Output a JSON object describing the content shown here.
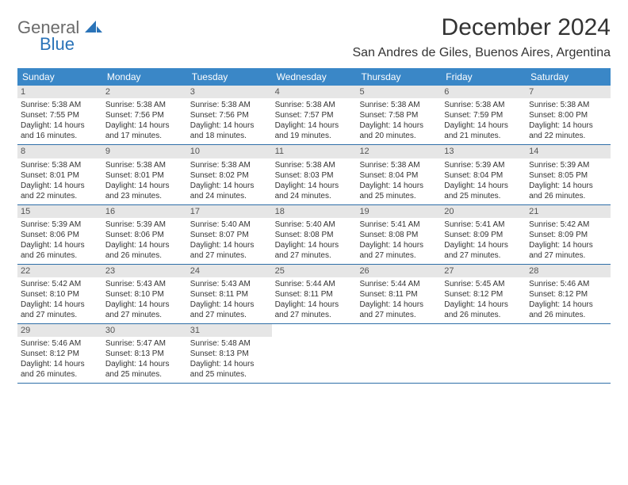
{
  "brand": {
    "general": "General",
    "blue": "Blue"
  },
  "header": {
    "month_title": "December 2024",
    "location": "San Andres de Giles, Buenos Aires, Argentina"
  },
  "styling": {
    "header_bg": "#3a87c7",
    "header_text": "#ffffff",
    "row_divider": "#2f6fa8",
    "daynum_bg": "#e6e6e6",
    "daynum_text": "#555555",
    "body_text": "#333333",
    "logo_gray": "#6b6b6b",
    "logo_blue": "#2a73b8",
    "page_bg": "#ffffff",
    "month_title_fontsize": 30,
    "location_fontsize": 16,
    "weekday_fontsize": 12,
    "cell_fontsize": 10,
    "columns": 7
  },
  "weekdays": [
    "Sunday",
    "Monday",
    "Tuesday",
    "Wednesday",
    "Thursday",
    "Friday",
    "Saturday"
  ],
  "days": [
    {
      "n": "1",
      "sunrise": "Sunrise: 5:38 AM",
      "sunset": "Sunset: 7:55 PM",
      "daylight": "Daylight: 14 hours and 16 minutes."
    },
    {
      "n": "2",
      "sunrise": "Sunrise: 5:38 AM",
      "sunset": "Sunset: 7:56 PM",
      "daylight": "Daylight: 14 hours and 17 minutes."
    },
    {
      "n": "3",
      "sunrise": "Sunrise: 5:38 AM",
      "sunset": "Sunset: 7:56 PM",
      "daylight": "Daylight: 14 hours and 18 minutes."
    },
    {
      "n": "4",
      "sunrise": "Sunrise: 5:38 AM",
      "sunset": "Sunset: 7:57 PM",
      "daylight": "Daylight: 14 hours and 19 minutes."
    },
    {
      "n": "5",
      "sunrise": "Sunrise: 5:38 AM",
      "sunset": "Sunset: 7:58 PM",
      "daylight": "Daylight: 14 hours and 20 minutes."
    },
    {
      "n": "6",
      "sunrise": "Sunrise: 5:38 AM",
      "sunset": "Sunset: 7:59 PM",
      "daylight": "Daylight: 14 hours and 21 minutes."
    },
    {
      "n": "7",
      "sunrise": "Sunrise: 5:38 AM",
      "sunset": "Sunset: 8:00 PM",
      "daylight": "Daylight: 14 hours and 22 minutes."
    },
    {
      "n": "8",
      "sunrise": "Sunrise: 5:38 AM",
      "sunset": "Sunset: 8:01 PM",
      "daylight": "Daylight: 14 hours and 22 minutes."
    },
    {
      "n": "9",
      "sunrise": "Sunrise: 5:38 AM",
      "sunset": "Sunset: 8:01 PM",
      "daylight": "Daylight: 14 hours and 23 minutes."
    },
    {
      "n": "10",
      "sunrise": "Sunrise: 5:38 AM",
      "sunset": "Sunset: 8:02 PM",
      "daylight": "Daylight: 14 hours and 24 minutes."
    },
    {
      "n": "11",
      "sunrise": "Sunrise: 5:38 AM",
      "sunset": "Sunset: 8:03 PM",
      "daylight": "Daylight: 14 hours and 24 minutes."
    },
    {
      "n": "12",
      "sunrise": "Sunrise: 5:38 AM",
      "sunset": "Sunset: 8:04 PM",
      "daylight": "Daylight: 14 hours and 25 minutes."
    },
    {
      "n": "13",
      "sunrise": "Sunrise: 5:39 AM",
      "sunset": "Sunset: 8:04 PM",
      "daylight": "Daylight: 14 hours and 25 minutes."
    },
    {
      "n": "14",
      "sunrise": "Sunrise: 5:39 AM",
      "sunset": "Sunset: 8:05 PM",
      "daylight": "Daylight: 14 hours and 26 minutes."
    },
    {
      "n": "15",
      "sunrise": "Sunrise: 5:39 AM",
      "sunset": "Sunset: 8:06 PM",
      "daylight": "Daylight: 14 hours and 26 minutes."
    },
    {
      "n": "16",
      "sunrise": "Sunrise: 5:39 AM",
      "sunset": "Sunset: 8:06 PM",
      "daylight": "Daylight: 14 hours and 26 minutes."
    },
    {
      "n": "17",
      "sunrise": "Sunrise: 5:40 AM",
      "sunset": "Sunset: 8:07 PM",
      "daylight": "Daylight: 14 hours and 27 minutes."
    },
    {
      "n": "18",
      "sunrise": "Sunrise: 5:40 AM",
      "sunset": "Sunset: 8:08 PM",
      "daylight": "Daylight: 14 hours and 27 minutes."
    },
    {
      "n": "19",
      "sunrise": "Sunrise: 5:41 AM",
      "sunset": "Sunset: 8:08 PM",
      "daylight": "Daylight: 14 hours and 27 minutes."
    },
    {
      "n": "20",
      "sunrise": "Sunrise: 5:41 AM",
      "sunset": "Sunset: 8:09 PM",
      "daylight": "Daylight: 14 hours and 27 minutes."
    },
    {
      "n": "21",
      "sunrise": "Sunrise: 5:42 AM",
      "sunset": "Sunset: 8:09 PM",
      "daylight": "Daylight: 14 hours and 27 minutes."
    },
    {
      "n": "22",
      "sunrise": "Sunrise: 5:42 AM",
      "sunset": "Sunset: 8:10 PM",
      "daylight": "Daylight: 14 hours and 27 minutes."
    },
    {
      "n": "23",
      "sunrise": "Sunrise: 5:43 AM",
      "sunset": "Sunset: 8:10 PM",
      "daylight": "Daylight: 14 hours and 27 minutes."
    },
    {
      "n": "24",
      "sunrise": "Sunrise: 5:43 AM",
      "sunset": "Sunset: 8:11 PM",
      "daylight": "Daylight: 14 hours and 27 minutes."
    },
    {
      "n": "25",
      "sunrise": "Sunrise: 5:44 AM",
      "sunset": "Sunset: 8:11 PM",
      "daylight": "Daylight: 14 hours and 27 minutes."
    },
    {
      "n": "26",
      "sunrise": "Sunrise: 5:44 AM",
      "sunset": "Sunset: 8:11 PM",
      "daylight": "Daylight: 14 hours and 27 minutes."
    },
    {
      "n": "27",
      "sunrise": "Sunrise: 5:45 AM",
      "sunset": "Sunset: 8:12 PM",
      "daylight": "Daylight: 14 hours and 26 minutes."
    },
    {
      "n": "28",
      "sunrise": "Sunrise: 5:46 AM",
      "sunset": "Sunset: 8:12 PM",
      "daylight": "Daylight: 14 hours and 26 minutes."
    },
    {
      "n": "29",
      "sunrise": "Sunrise: 5:46 AM",
      "sunset": "Sunset: 8:12 PM",
      "daylight": "Daylight: 14 hours and 26 minutes."
    },
    {
      "n": "30",
      "sunrise": "Sunrise: 5:47 AM",
      "sunset": "Sunset: 8:13 PM",
      "daylight": "Daylight: 14 hours and 25 minutes."
    },
    {
      "n": "31",
      "sunrise": "Sunrise: 5:48 AM",
      "sunset": "Sunset: 8:13 PM",
      "daylight": "Daylight: 14 hours and 25 minutes."
    }
  ],
  "trailing_empty": 4
}
